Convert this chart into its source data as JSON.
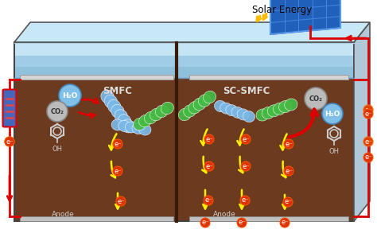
{
  "title": "Solar Energy",
  "label_smfc": "SMFC",
  "label_sc_smfc": "SC-SMFC",
  "label_anode_left": "Anode",
  "label_anode_right": "Anode",
  "label_h2o_left": "H₂O",
  "label_co2_left": "CO₂",
  "label_oh_left": "OH",
  "label_co2_right": "CO₂",
  "label_h2o_right": "H₂O",
  "label_oh_right": "OH",
  "label_e_minus": "e⁻",
  "bg_color": "#ffffff",
  "soil_color": "#6b3a1f",
  "water_top_color": "#b8dcf0",
  "water_mid_color": "#8ec8e8",
  "cathode_color": "#d8d8d8",
  "anode_color": "#c0c0c0",
  "red_wire": "#dd0000",
  "solar_blue": "#2060bb",
  "solar_light": "#4488dd"
}
